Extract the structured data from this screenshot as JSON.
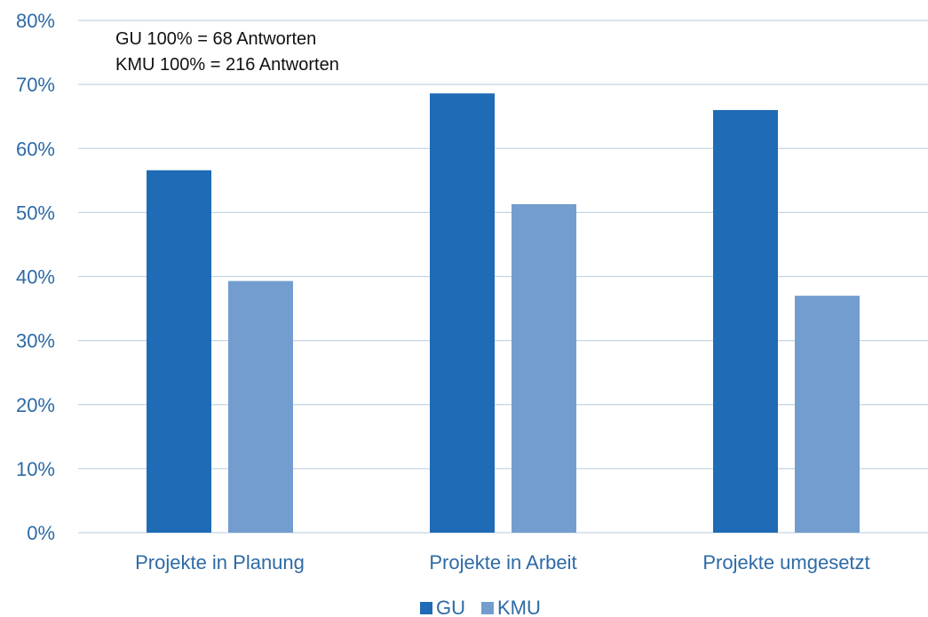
{
  "chart_data": {
    "type": "bar",
    "categories": [
      "Projekte in Planung",
      "Projekte in Arbeit",
      "Projekte umgesetzt"
    ],
    "series": [
      {
        "name": "GU",
        "values": [
          56.6,
          68.6,
          66.0
        ],
        "color": "#1f6bb5"
      },
      {
        "name": "KMU",
        "values": [
          39.3,
          51.3,
          37.0
        ],
        "color": "#739dcf"
      }
    ],
    "ylim": [
      0,
      80
    ],
    "ytick_step": 10,
    "ytick_suffix": "%",
    "grid": true,
    "legend": "bottom-center",
    "annotations": [
      "GU 100% = 68 Antworten",
      "KMU 100% = 216 Antworten"
    ],
    "annotation_position": "top-left"
  }
}
